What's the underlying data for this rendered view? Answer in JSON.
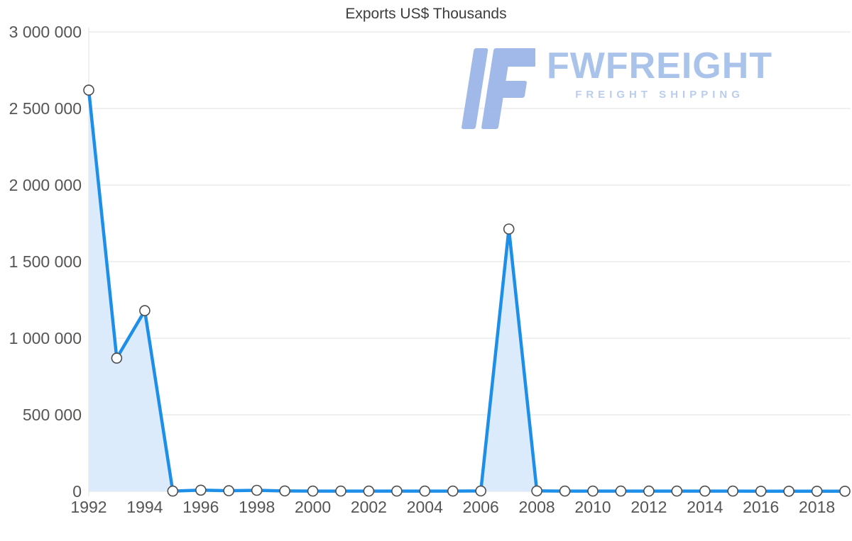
{
  "title": "Exports US$ Thousands",
  "watermark": {
    "brand": "FWFREIGHT",
    "tagline": "FREIGHT SHIPPING",
    "brand_color": "#a6c0ea",
    "mark_color": "#9cb6e8",
    "tagline_color": "#b7cbec"
  },
  "chart_data": {
    "type": "area",
    "title": "Exports US$ Thousands",
    "x": [
      1992,
      1993,
      1994,
      1995,
      1996,
      1997,
      1998,
      1999,
      2000,
      2001,
      2002,
      2003,
      2004,
      2005,
      2006,
      2007,
      2008,
      2009,
      2010,
      2011,
      2012,
      2013,
      2014,
      2015,
      2016,
      2017,
      2018,
      2019
    ],
    "values": [
      2620000,
      870000,
      1180000,
      2000,
      8000,
      4000,
      7000,
      3000,
      2000,
      2000,
      2000,
      2000,
      2000,
      2000,
      3000,
      1713000,
      3000,
      2000,
      2000,
      2000,
      2000,
      2000,
      2000,
      2000,
      1000,
      1000,
      1000,
      1000
    ],
    "x_ticks": [
      1992,
      1994,
      1996,
      1998,
      2000,
      2002,
      2004,
      2006,
      2008,
      2010,
      2012,
      2014,
      2016,
      2018
    ],
    "y_ticks": [
      0,
      500000,
      1000000,
      1500000,
      2000000,
      2500000,
      3000000
    ],
    "y_tick_labels": [
      "0",
      "500 000",
      "1 000 000",
      "1 500 000",
      "2 000 000",
      "2 500 000",
      "3 000 000"
    ],
    "ylim": [
      0,
      3000000
    ],
    "xlabel": "",
    "ylabel": "",
    "grid": true,
    "legend": "none",
    "line_color": "#1e8fe8",
    "area_color": "#dcebfb",
    "marker_fill": "#ffffff",
    "marker_stroke": "#4d4d4d",
    "grid_color": "#e2e2e2",
    "tick_label_color": "#555555"
  }
}
